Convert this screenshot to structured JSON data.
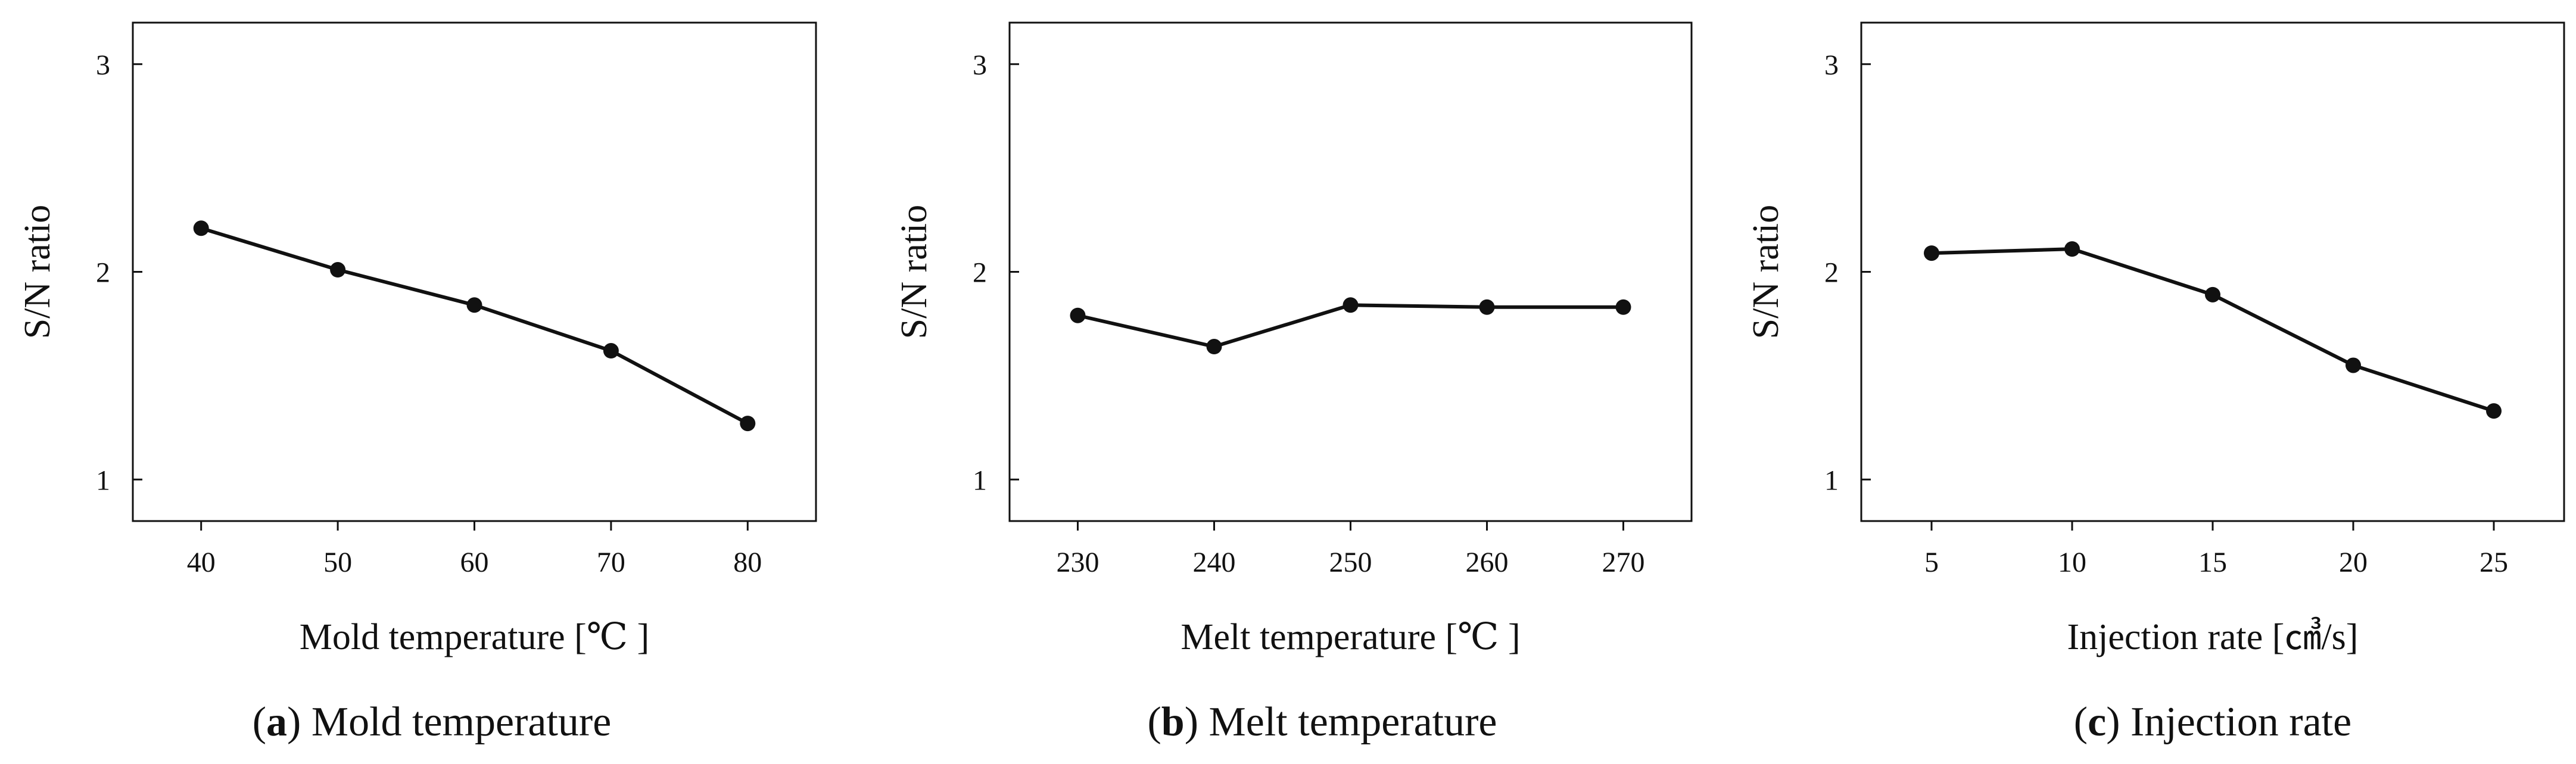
{
  "figure": {
    "captions": [
      {
        "letter": "a",
        "text": "Mold temperature"
      },
      {
        "letter": "b",
        "text": "Melt temperature"
      },
      {
        "letter": "c",
        "text": "Injection rate"
      }
    ]
  },
  "chart_data": [
    {
      "type": "line",
      "panel": "a",
      "title": "",
      "xlabel": "Mold temperature [℃ ]",
      "ylabel": "S/N ratio",
      "x": [
        40,
        50,
        60,
        70,
        80
      ],
      "x_tick_labels": [
        "40",
        "50",
        "60",
        "70",
        "80"
      ],
      "y": [
        2.21,
        2.01,
        1.84,
        1.62,
        1.27
      ],
      "y_ticks": [
        1,
        2,
        3
      ],
      "y_tick_labels": [
        "1",
        "2",
        "3"
      ],
      "xlim": [
        35,
        85
      ],
      "ylim": [
        0.8,
        3.2
      ],
      "grid": false,
      "color": "#111111"
    },
    {
      "type": "line",
      "panel": "b",
      "title": "",
      "xlabel": "Melt temperature [℃ ]",
      "ylabel": "S/N ratio",
      "x": [
        230,
        240,
        250,
        260,
        270
      ],
      "x_tick_labels": [
        "230",
        "240",
        "250",
        "260",
        "270"
      ],
      "y": [
        1.79,
        1.64,
        1.84,
        1.83,
        1.83
      ],
      "y_ticks": [
        1,
        2,
        3
      ],
      "y_tick_labels": [
        "1",
        "2",
        "3"
      ],
      "xlim": [
        225,
        275
      ],
      "ylim": [
        0.8,
        3.2
      ],
      "grid": false,
      "color": "#111111"
    },
    {
      "type": "line",
      "panel": "c",
      "title": "",
      "xlabel": "Injection rate [㎤/s]",
      "ylabel": "S/N ratio",
      "x": [
        5,
        10,
        15,
        20,
        25
      ],
      "x_tick_labels": [
        "5",
        "10",
        "15",
        "20",
        "25"
      ],
      "y": [
        2.09,
        2.11,
        1.89,
        1.55,
        1.33
      ],
      "y_ticks": [
        1,
        2,
        3
      ],
      "y_tick_labels": [
        "1",
        "2",
        "3"
      ],
      "xlim": [
        2.5,
        27.5
      ],
      "ylim": [
        0.8,
        3.2
      ],
      "grid": false,
      "color": "#111111"
    }
  ]
}
